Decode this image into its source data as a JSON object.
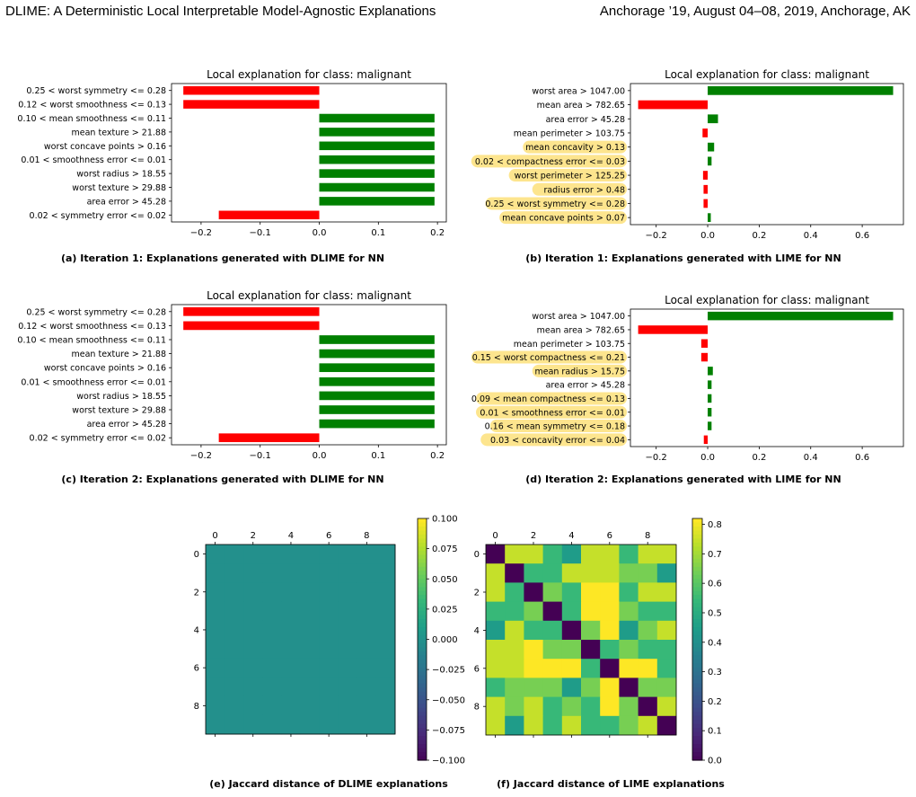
{
  "header": {
    "left": "DLIME: A Deterministic Local Interpretable Model-Agnostic Explanations",
    "right": "Anchorage ’19, August 04–08, 2019, Anchorage, AK"
  },
  "colors": {
    "negative": "#ff0000",
    "positive": "#008000",
    "highlight": "#fde58e"
  },
  "chart_data": [
    {
      "type": "bar",
      "orientation": "horizontal",
      "title": "Local explanation for class: malignant",
      "caption": "(a) Iteration 1: Explanations generated with DLIME for NN",
      "categories": [
        "0.25 < worst symmetry <= 0.28",
        "0.12 < worst smoothness <= 0.13",
        "0.10 < mean smoothness <= 0.11",
        "mean texture > 21.88",
        "worst concave points > 0.16",
        "0.01 < smoothness error <= 0.01",
        "worst radius > 18.55",
        "worst texture > 29.88",
        "area error > 45.28",
        "0.02 < symmetry error <= 0.02"
      ],
      "values": [
        -0.23,
        -0.23,
        0.195,
        0.195,
        0.195,
        0.195,
        0.195,
        0.195,
        0.195,
        -0.17
      ],
      "highlighted": [
        false,
        false,
        false,
        false,
        false,
        false,
        false,
        false,
        false,
        false
      ],
      "xlim": [
        -0.25,
        0.215
      ],
      "xticks": [
        -0.2,
        -0.1,
        0.0,
        0.1,
        0.2
      ],
      "xtick_labels": [
        "−0.2",
        "−0.1",
        "0.0",
        "0.1",
        "0.2"
      ]
    },
    {
      "type": "bar",
      "orientation": "horizontal",
      "title": "Local explanation for class: malignant",
      "caption": "(b) Iteration 1: Explanations generated with LIME for NN",
      "categories": [
        "worst area > 1047.00",
        "mean area > 782.65",
        "area error > 45.28",
        "mean perimeter > 103.75",
        "mean concavity > 0.13",
        "0.02 < compactness error <= 0.03",
        "worst perimeter > 125.25",
        "radius error > 0.48",
        "0.25 < worst symmetry <= 0.28",
        "mean concave points > 0.07"
      ],
      "values": [
        0.72,
        -0.27,
        0.04,
        -0.02,
        0.025,
        0.015,
        -0.018,
        -0.016,
        -0.016,
        0.012
      ],
      "highlighted": [
        false,
        false,
        false,
        false,
        true,
        true,
        true,
        true,
        true,
        true
      ],
      "xlim": [
        -0.3,
        0.76
      ],
      "xticks": [
        -0.2,
        0.0,
        0.2,
        0.4,
        0.6
      ],
      "xtick_labels": [
        "−0.2",
        "0.0",
        "0.2",
        "0.4",
        "0.6"
      ]
    },
    {
      "type": "bar",
      "orientation": "horizontal",
      "title": "Local explanation for class: malignant",
      "caption": "(c) Iteration 2: Explanations generated with DLIME for NN",
      "categories": [
        "0.25 < worst symmetry <= 0.28",
        "0.12 < worst smoothness <= 0.13",
        "0.10 < mean smoothness <= 0.11",
        "mean texture > 21.88",
        "worst concave points > 0.16",
        "0.01 < smoothness error <= 0.01",
        "worst radius > 18.55",
        "worst texture > 29.88",
        "area error > 45.28",
        "0.02 < symmetry error <= 0.02"
      ],
      "values": [
        -0.23,
        -0.23,
        0.195,
        0.195,
        0.195,
        0.195,
        0.195,
        0.195,
        0.195,
        -0.17
      ],
      "highlighted": [
        false,
        false,
        false,
        false,
        false,
        false,
        false,
        false,
        false,
        false
      ],
      "xlim": [
        -0.25,
        0.215
      ],
      "xticks": [
        -0.2,
        -0.1,
        0.0,
        0.1,
        0.2
      ],
      "xtick_labels": [
        "−0.2",
        "−0.1",
        "0.0",
        "0.1",
        "0.2"
      ]
    },
    {
      "type": "bar",
      "orientation": "horizontal",
      "title": "Local explanation for class: malignant",
      "caption": "(d) Iteration 2: Explanations generated with LIME for NN",
      "categories": [
        "worst area > 1047.00",
        "mean area > 782.65",
        "mean perimeter > 103.75",
        "0.15 < worst compactness <= 0.21",
        "mean radius > 15.75",
        "area error > 45.28",
        "0.09 < mean compactness <= 0.13",
        "0.01 < smoothness error <= 0.01",
        "0.16 < mean symmetry <= 0.18",
        "0.03 < concavity error <= 0.04"
      ],
      "values": [
        0.72,
        -0.27,
        -0.025,
        -0.025,
        0.02,
        0.015,
        0.015,
        0.015,
        0.015,
        -0.015
      ],
      "highlighted": [
        false,
        false,
        false,
        true,
        true,
        false,
        true,
        true,
        true,
        true
      ],
      "xlim": [
        -0.3,
        0.76
      ],
      "xticks": [
        -0.2,
        0.0,
        0.2,
        0.4,
        0.6
      ],
      "xtick_labels": [
        "−0.2",
        "0.0",
        "0.2",
        "0.4",
        "0.6"
      ]
    },
    {
      "type": "heatmap",
      "caption": "(e) Jaccard distance of DLIME explanations",
      "matrix": [
        [
          0,
          0,
          0,
          0,
          0,
          0,
          0,
          0,
          0,
          0
        ],
        [
          0,
          0,
          0,
          0,
          0,
          0,
          0,
          0,
          0,
          0
        ],
        [
          0,
          0,
          0,
          0,
          0,
          0,
          0,
          0,
          0,
          0
        ],
        [
          0,
          0,
          0,
          0,
          0,
          0,
          0,
          0,
          0,
          0
        ],
        [
          0,
          0,
          0,
          0,
          0,
          0,
          0,
          0,
          0,
          0
        ],
        [
          0,
          0,
          0,
          0,
          0,
          0,
          0,
          0,
          0,
          0
        ],
        [
          0,
          0,
          0,
          0,
          0,
          0,
          0,
          0,
          0,
          0
        ],
        [
          0,
          0,
          0,
          0,
          0,
          0,
          0,
          0,
          0,
          0
        ],
        [
          0,
          0,
          0,
          0,
          0,
          0,
          0,
          0,
          0,
          0
        ],
        [
          0,
          0,
          0,
          0,
          0,
          0,
          0,
          0,
          0,
          0
        ]
      ],
      "vmin": -0.1,
      "vmax": 0.1,
      "xticks": [
        0,
        2,
        4,
        6,
        8
      ],
      "yticks": [
        0,
        2,
        4,
        6,
        8
      ],
      "xtick_labels": [
        "0",
        "2",
        "4",
        "6",
        "8"
      ],
      "ytick_labels": [
        "0",
        "2",
        "4",
        "6",
        "8"
      ],
      "cbar_ticks": [
        0.1,
        0.075,
        0.05,
        0.025,
        0.0,
        -0.025,
        -0.05,
        -0.075,
        -0.1
      ],
      "cbar_tick_labels": [
        "0.100",
        "0.075",
        "0.050",
        "0.025",
        "0.000",
        "−0.025",
        "−0.050",
        "−0.075",
        "−0.100"
      ]
    },
    {
      "type": "heatmap",
      "caption": "(f) Jaccard distance of LIME explanations",
      "matrix": [
        [
          0.0,
          0.75,
          0.75,
          0.55,
          0.45,
          0.75,
          0.75,
          0.55,
          0.75,
          0.75
        ],
        [
          0.75,
          0.0,
          0.55,
          0.55,
          0.75,
          0.75,
          0.75,
          0.65,
          0.65,
          0.45
        ],
        [
          0.75,
          0.55,
          0.0,
          0.65,
          0.55,
          0.82,
          0.82,
          0.55,
          0.75,
          0.75
        ],
        [
          0.55,
          0.55,
          0.65,
          0.0,
          0.55,
          0.82,
          0.82,
          0.65,
          0.55,
          0.55
        ],
        [
          0.45,
          0.75,
          0.55,
          0.55,
          0.0,
          0.65,
          0.82,
          0.45,
          0.65,
          0.75
        ],
        [
          0.75,
          0.75,
          0.82,
          0.65,
          0.65,
          0.0,
          0.55,
          0.65,
          0.55,
          0.55
        ],
        [
          0.75,
          0.75,
          0.82,
          0.82,
          0.82,
          0.55,
          0.0,
          0.82,
          0.82,
          0.55
        ],
        [
          0.55,
          0.65,
          0.65,
          0.65,
          0.45,
          0.65,
          0.82,
          0.0,
          0.65,
          0.65
        ],
        [
          0.75,
          0.65,
          0.75,
          0.55,
          0.65,
          0.55,
          0.82,
          0.65,
          0.0,
          0.75
        ],
        [
          0.75,
          0.45,
          0.75,
          0.55,
          0.75,
          0.55,
          0.55,
          0.65,
          0.75,
          0.0
        ]
      ],
      "vmin": 0.0,
      "vmax": 0.82,
      "xticks": [
        0,
        2,
        4,
        6,
        8
      ],
      "yticks": [
        0,
        2,
        4,
        6,
        8
      ],
      "xtick_labels": [
        "0",
        "2",
        "4",
        "6",
        "8"
      ],
      "ytick_labels": [
        "0",
        "2",
        "4",
        "6",
        "8"
      ],
      "cbar_ticks": [
        0.8,
        0.7,
        0.6,
        0.5,
        0.4,
        0.3,
        0.2,
        0.1,
        0.0
      ],
      "cbar_tick_labels": [
        "0.8",
        "0.7",
        "0.6",
        "0.5",
        "0.4",
        "0.3",
        "0.2",
        "0.1",
        "0.0"
      ]
    }
  ]
}
